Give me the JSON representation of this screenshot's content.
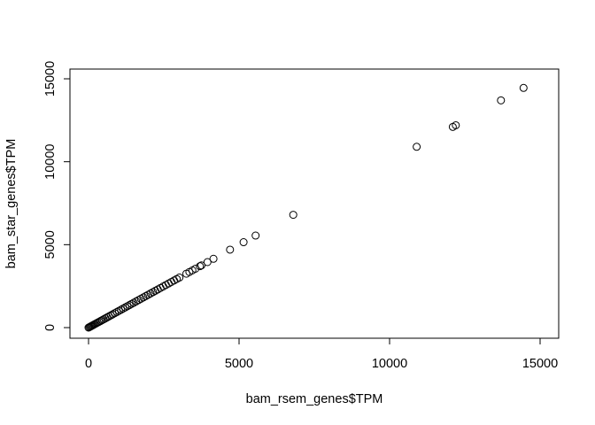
{
  "chart_data": {
    "type": "scatter",
    "title": "",
    "xlabel": "bam_rsem_genes$TPM",
    "ylabel": "bam_star_genes$TPM",
    "xlim": [
      -600,
      15000
    ],
    "ylim": [
      -600,
      15000
    ],
    "x_ticks": [
      0,
      5000,
      10000,
      15000
    ],
    "y_ticks": [
      0,
      5000,
      10000,
      15000
    ],
    "x_tick_labels": [
      "0",
      "5000",
      "10000",
      "15000"
    ],
    "y_tick_labels": [
      "0",
      "5000",
      "10000",
      "15000"
    ],
    "grid": false,
    "marker": "open-circle",
    "points": [
      [
        0,
        0
      ],
      [
        30,
        30
      ],
      [
        60,
        60
      ],
      [
        90,
        90
      ],
      [
        120,
        120
      ],
      [
        150,
        150
      ],
      [
        180,
        180
      ],
      [
        220,
        220
      ],
      [
        260,
        260
      ],
      [
        300,
        300
      ],
      [
        350,
        350
      ],
      [
        400,
        400
      ],
      [
        450,
        450
      ],
      [
        500,
        500
      ],
      [
        560,
        560
      ],
      [
        620,
        620
      ],
      [
        680,
        680
      ],
      [
        740,
        740
      ],
      [
        800,
        800
      ],
      [
        870,
        870
      ],
      [
        940,
        940
      ],
      [
        1010,
        1010
      ],
      [
        1080,
        1080
      ],
      [
        1150,
        1150
      ],
      [
        1220,
        1220
      ],
      [
        1290,
        1290
      ],
      [
        1360,
        1360
      ],
      [
        1430,
        1430
      ],
      [
        1500,
        1500
      ],
      [
        1580,
        1580
      ],
      [
        1660,
        1660
      ],
      [
        1740,
        1740
      ],
      [
        1820,
        1820
      ],
      [
        1900,
        1900
      ],
      [
        1980,
        1980
      ],
      [
        2060,
        2060
      ],
      [
        2140,
        2140
      ],
      [
        2220,
        2220
      ],
      [
        2300,
        2300
      ],
      [
        2390,
        2390
      ],
      [
        2480,
        2480
      ],
      [
        2570,
        2570
      ],
      [
        2660,
        2660
      ],
      [
        2750,
        2750
      ],
      [
        2840,
        2840
      ],
      [
        2930,
        2930
      ],
      [
        3020,
        3020
      ],
      [
        3250,
        3250
      ],
      [
        3350,
        3350
      ],
      [
        3450,
        3450
      ],
      [
        3550,
        3550
      ],
      [
        3700,
        3700
      ],
      [
        3750,
        3750
      ],
      [
        3950,
        3950
      ],
      [
        4150,
        4150
      ],
      [
        4700,
        4700
      ],
      [
        5150,
        5150
      ],
      [
        5550,
        5550
      ],
      [
        6800,
        6800
      ],
      [
        10900,
        10900
      ],
      [
        12100,
        12100
      ],
      [
        12200,
        12200
      ],
      [
        13700,
        13700
      ],
      [
        14450,
        14450
      ]
    ]
  }
}
